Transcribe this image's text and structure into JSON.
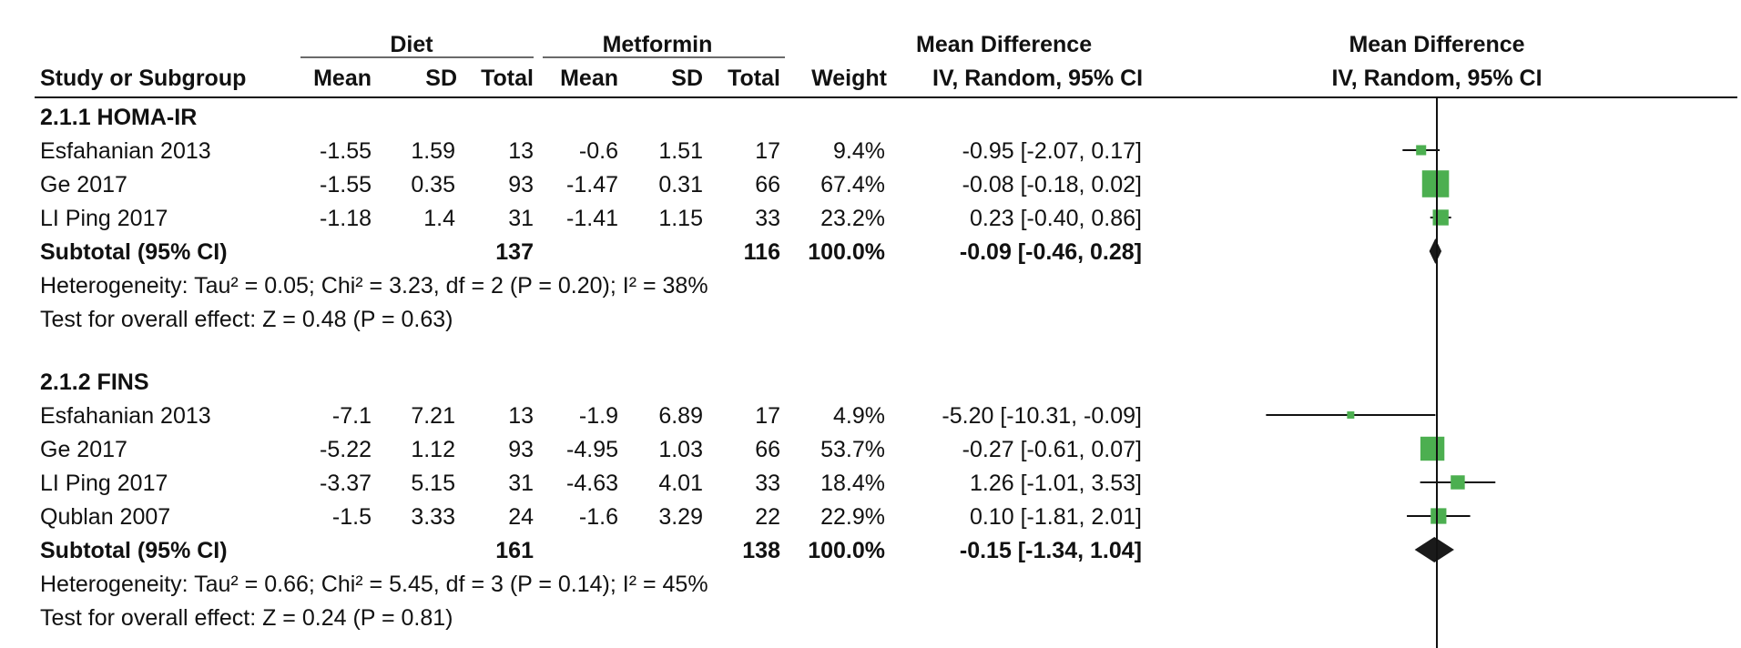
{
  "header": {
    "group1": "Diet",
    "group2": "Metformin",
    "md_col_top": "Mean Difference",
    "md_col_bottom": "IV, Random, 95% CI",
    "plot_top": "Mean Difference",
    "plot_bottom": "IV, Random, 95% CI",
    "study_col": "Study or Subgroup",
    "mean1": "Mean",
    "sd1": "SD",
    "total1": "Total",
    "mean2": "Mean",
    "sd2": "SD",
    "total2": "Total",
    "weight": "Weight"
  },
  "chart_data": {
    "type": "forest",
    "reference_line": 0,
    "subgroups": [
      {
        "title": "2.1.1 HOMA-IR",
        "studies": [
          {
            "name": "Esfahanian 2013",
            "mean1": "-1.55",
            "sd1": "1.59",
            "total1": "13",
            "mean2": "-0.6",
            "sd2": "1.51",
            "total2": "17",
            "weight": "9.4%",
            "ci_text": "-0.95 [-2.07, 0.17]",
            "md": -0.95,
            "lo": -2.07,
            "hi": 0.17,
            "w": 9.4
          },
          {
            "name": "Ge 2017",
            "mean1": "-1.55",
            "sd1": "0.35",
            "total1": "93",
            "mean2": "-1.47",
            "sd2": "0.31",
            "total2": "66",
            "weight": "67.4%",
            "ci_text": "-0.08 [-0.18, 0.02]",
            "md": -0.08,
            "lo": -0.18,
            "hi": 0.02,
            "w": 67.4
          },
          {
            "name": "LI Ping 2017",
            "mean1": "-1.18",
            "sd1": "1.4",
            "total1": "31",
            "mean2": "-1.41",
            "sd2": "1.15",
            "total2": "33",
            "weight": "23.2%",
            "ci_text": "0.23 [-0.40, 0.86]",
            "md": 0.23,
            "lo": -0.4,
            "hi": 0.86,
            "w": 23.2
          }
        ],
        "subtotal": {
          "label": "Subtotal (95% CI)",
          "total1": "137",
          "total2": "116",
          "weight": "100.0%",
          "ci_text": "-0.09 [-0.46, 0.28]",
          "md": -0.09,
          "lo": -0.46,
          "hi": 0.28
        },
        "heterogeneity": "Heterogeneity: Tau² = 0.05; Chi² = 3.23, df = 2 (P = 0.20); I² = 38%",
        "overall": "Test for overall effect: Z = 0.48 (P = 0.63)"
      },
      {
        "title": "2.1.2 FINS",
        "studies": [
          {
            "name": "Esfahanian 2013",
            "mean1": "-7.1",
            "sd1": "7.21",
            "total1": "13",
            "mean2": "-1.9",
            "sd2": "6.89",
            "total2": "17",
            "weight": "4.9%",
            "ci_text": "-5.20 [-10.31, -0.09]",
            "md": -5.2,
            "lo": -10.31,
            "hi": -0.09,
            "w": 4.9
          },
          {
            "name": "Ge 2017",
            "mean1": "-5.22",
            "sd1": "1.12",
            "total1": "93",
            "mean2": "-4.95",
            "sd2": "1.03",
            "total2": "66",
            "weight": "53.7%",
            "ci_text": "-0.27 [-0.61, 0.07]",
            "md": -0.27,
            "lo": -0.61,
            "hi": 0.07,
            "w": 53.7
          },
          {
            "name": "LI Ping 2017",
            "mean1": "-3.37",
            "sd1": "5.15",
            "total1": "31",
            "mean2": "-4.63",
            "sd2": "4.01",
            "total2": "33",
            "weight": "18.4%",
            "ci_text": "1.26 [-1.01, 3.53]",
            "md": 1.26,
            "lo": -1.01,
            "hi": 3.53,
            "w": 18.4
          },
          {
            "name": "Qublan 2007",
            "mean1": "-1.5",
            "sd1": "3.33",
            "total1": "24",
            "mean2": "-1.6",
            "sd2": "3.29",
            "total2": "22",
            "weight": "22.9%",
            "ci_text": "0.10 [-1.81, 2.01]",
            "md": 0.1,
            "lo": -1.81,
            "hi": 2.01,
            "w": 22.9
          }
        ],
        "subtotal": {
          "label": "Subtotal (95% CI)",
          "total1": "161",
          "total2": "138",
          "weight": "100.0%",
          "ci_text": "-0.15 [-1.34, 1.04]",
          "md": -0.15,
          "lo": -1.34,
          "hi": 1.04
        },
        "heterogeneity": "Heterogeneity: Tau² = 0.66; Chi² = 5.45, df = 3 (P = 0.14); I² = 45%",
        "overall": "Test for overall effect: Z = 0.24 (P = 0.81)"
      }
    ]
  },
  "colors": {
    "study_square": "#4caf50",
    "diamond": "#1a1a1a",
    "lines": "#111111"
  }
}
